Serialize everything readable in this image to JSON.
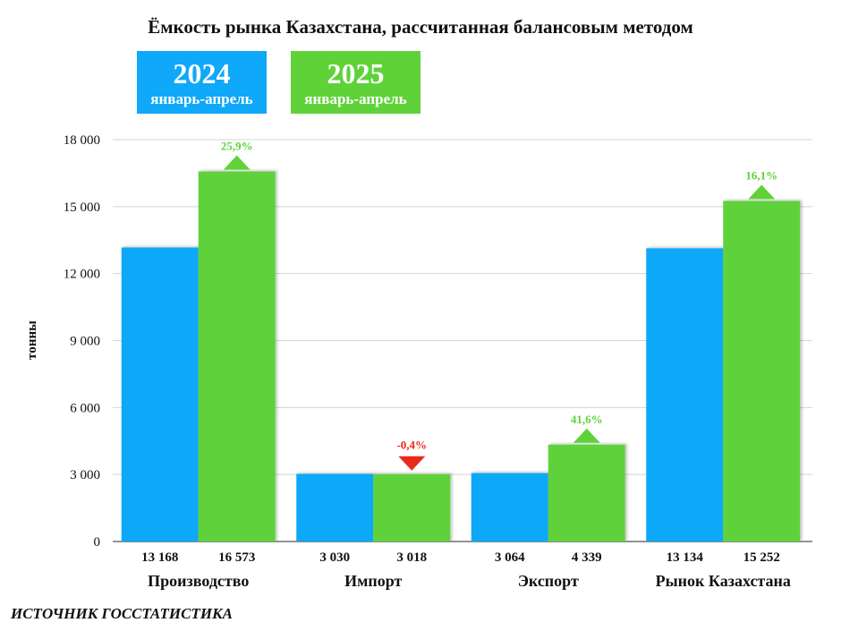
{
  "chart_data": {
    "type": "bar",
    "title": "Ёмкость рынка Казахстана, рассчитанная балансовым методом",
    "ylabel": "тонны",
    "xlabel": "",
    "ylim": [
      0,
      18000
    ],
    "yticks": [
      0,
      3000,
      6000,
      9000,
      12000,
      15000,
      18000
    ],
    "ytick_labels": [
      "0",
      "3 000",
      "6 000",
      "9 000",
      "12 000",
      "15 000",
      "18 000"
    ],
    "grid": true,
    "legend_position": "top-left",
    "categories": [
      "Производство",
      "Импорт",
      "Экспорт",
      "Рынок Казахстана"
    ],
    "series": [
      {
        "name_year": "2024",
        "name_period": "январь-апрель",
        "color": "#10a8f8",
        "values": [
          13168,
          3030,
          3064,
          13134
        ],
        "value_labels": [
          "13 168",
          "3 030",
          "3 064",
          "13 134"
        ]
      },
      {
        "name_year": "2025",
        "name_period": "январь-апрель",
        "color": "#5fd23a",
        "values": [
          16573,
          3018,
          4339,
          15252
        ],
        "value_labels": [
          "16 573",
          "3 018",
          "4 339",
          "15 252"
        ]
      }
    ],
    "changes": [
      {
        "label": "25,9%",
        "direction": "up",
        "color": "#5fd23a"
      },
      {
        "label": "-0,4%",
        "direction": "down",
        "color": "#e8291c"
      },
      {
        "label": "41,6%",
        "direction": "up",
        "color": "#5fd23a"
      },
      {
        "label": "16,1%",
        "direction": "up",
        "color": "#5fd23a"
      }
    ]
  },
  "source_note": "ИСТОЧНИК ГОССТАТИСТИКА"
}
